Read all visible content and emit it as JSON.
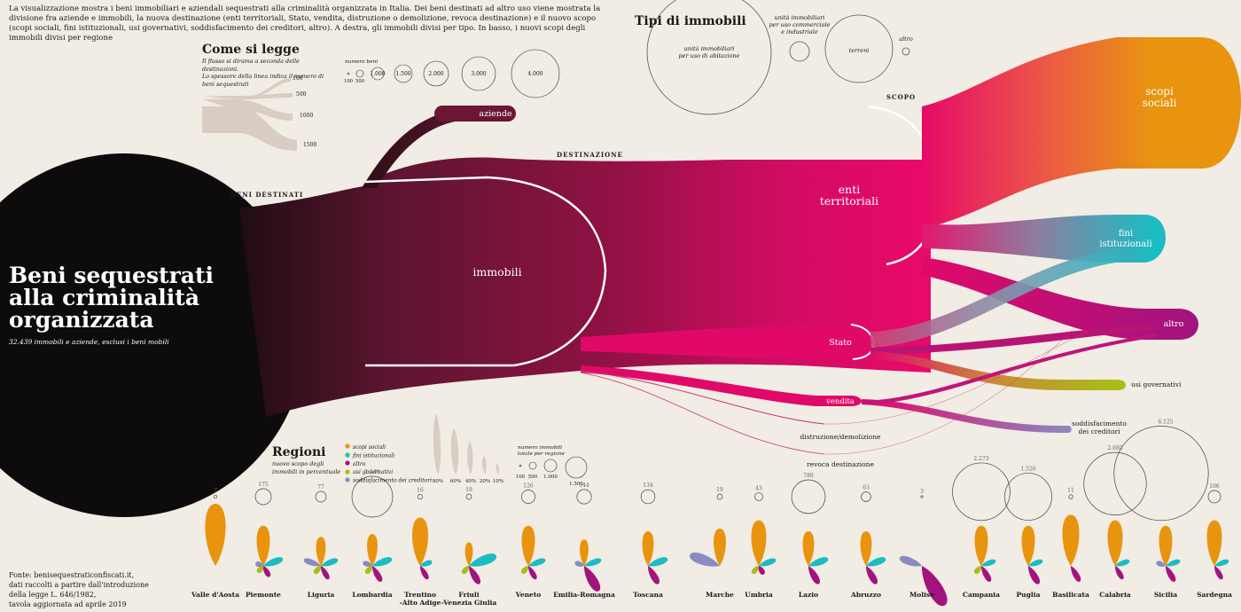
{
  "intro_text": "La visualizzazione mostra i beni immobiliari e aziendali sequestrati alla criminalità organizzata in Italia. Dei beni destinati ad altro uso viene mostrata la divisione fra aziende e immobili, la nuova destinazione (enti territoriali, Stato, vendita, distruzione o demolizione, revoca destinazione) e il nuovo scopo (scopi sociali, fini istituzionali, usi governativi, soddisfacimento dei creditori, altro). A destra, gli immobili divisi per tipo. In basso, i nuovi scopi degli immobili divisi per regione",
  "title": "Beni sequestrati alla criminalità organizzata",
  "title_lines": [
    "Beni sequestrati",
    "alla criminalità",
    "organizzata"
  ],
  "subtitle": "32.439 immobili e aziende, esclusi i beni mobili",
  "how_to_read": {
    "heading": "Come si legge",
    "line1": "Il flusso si dirama a seconda delle destinazioni.",
    "line2": "Lo spessore della linea indica il numero di beni sequestrati",
    "flow_values": [
      "100",
      "500",
      "1000",
      "1500"
    ],
    "legend_title": "numero beni",
    "circle_values": [
      "100",
      "500",
      "1.000",
      "1.500",
      "2.000",
      "3.000",
      "4.000"
    ]
  },
  "tipi": {
    "heading": "Tipi di immobili",
    "items": [
      "unità immobiliari per uso di abitazione",
      "unità immobiliari per uso commerciale e industriale",
      "terreni",
      "altro"
    ]
  },
  "stage_labels": {
    "beni": "BENI DESTINATI",
    "destinazione": "DESTINAZIONE",
    "scopo": "SCOPO"
  },
  "nodes": {
    "aziende": "aziende",
    "immobili": "immobili",
    "enti": "enti territoriali",
    "stato": "Stato",
    "vendita": "vendita",
    "distruzione": "distruzione/demolizione",
    "revoca": "revoca destinazione",
    "scopi_sociali": "scopi sociali",
    "fini": "fini istituzionali",
    "altro": "altro",
    "usi_gov": "usi governativi",
    "creditori": "soddisfacimento dei creditori"
  },
  "regioni": {
    "heading": "Regioni",
    "sub": "nuovo scopo degli immobili in percentuale",
    "legend": [
      "scopi sociali",
      "fini istituzionali",
      "altro",
      "usi governativi",
      "soddisfacimento dei creditori"
    ],
    "pct_labels": [
      "80%",
      "60%",
      "40%",
      "20%",
      "10%"
    ],
    "size_legend_title": "numero immobili totale per regione",
    "size_values": [
      "100",
      "500",
      "1.000",
      "1.500"
    ]
  },
  "colors": {
    "scopi_sociali": "#e8940f",
    "fini_istituzionali": "#1bbcc3",
    "altro": "#a3137e",
    "usi_governativi": "#a9bd17",
    "creditori": "#8c8ac2",
    "enti": "#e0096a",
    "immobili": "#6b1733",
    "background": "#f1ece4"
  },
  "source_lines": [
    "Fonte: benisequestraticonfiscati.it,",
    "dati raccolti a partire dall'introduzione",
    "della legge L. 646/1982,",
    "tavola aggiornata ad aprile 2019"
  ],
  "chart_data": {
    "type": "sankey",
    "total": 32439,
    "regions": [
      {
        "name": "Valle d'Aosta",
        "total": "7",
        "shares": {
          "scopi_sociali": 100
        }
      },
      {
        "name": "Piemonte",
        "total": "175",
        "shares": {
          "scopi_sociali": 60,
          "fini": 25,
          "altro": 10,
          "usi_gov": 3,
          "creditori": 2
        }
      },
      {
        "name": "Liguria",
        "total": "77",
        "shares": {
          "scopi_sociali": 40,
          "fini": 20,
          "altro": 15,
          "usi_gov": 5,
          "creditori": 20
        }
      },
      {
        "name": "Lombardia",
        "total": "1.141",
        "shares": {
          "scopi_sociali": 45,
          "fini": 25,
          "altro": 20,
          "usi_gov": 5,
          "creditori": 5
        }
      },
      {
        "name": "Trentino -Alto Adige",
        "total": "16",
        "shares": {
          "scopi_sociali": 75,
          "fini": 10,
          "altro": 15
        }
      },
      {
        "name": "Friuli -Venezia Giulia",
        "total": "19",
        "shares": {
          "scopi_sociali": 30,
          "fini": 40,
          "altro": 25,
          "usi_gov": 5
        }
      },
      {
        "name": "Veneto",
        "total": "126",
        "shares": {
          "scopi_sociali": 60,
          "fini": 20,
          "altro": 15,
          "usi_gov": 5
        }
      },
      {
        "name": "Emilia-Romagna",
        "total": "144",
        "shares": {
          "scopi_sociali": 35,
          "fini": 20,
          "altro": 40,
          "creditori": 5
        }
      },
      {
        "name": "Toscana",
        "total": "134",
        "shares": {
          "scopi_sociali": 50,
          "fini": 25,
          "altro": 25
        }
      },
      {
        "name": "Marche",
        "total": "19",
        "shares": {
          "scopi_sociali": 55,
          "creditori": 45
        }
      },
      {
        "name": "Umbria",
        "total": "43",
        "shares": {
          "scopi_sociali": 70,
          "fini": 20,
          "altro": 5,
          "usi_gov": 5
        }
      },
      {
        "name": "Lazio",
        "total": "780",
        "shares": {
          "scopi_sociali": 50,
          "fini": 25,
          "altro": 25
        }
      },
      {
        "name": "Abruzzo",
        "total": "63",
        "shares": {
          "scopi_sociali": 50,
          "fini": 25,
          "altro": 25
        }
      },
      {
        "name": "Molise",
        "total": "3",
        "shares": {
          "altro": 70,
          "creditori": 30
        }
      },
      {
        "name": "Campania",
        "total": "2.273",
        "shares": {
          "scopi_sociali": 60,
          "fini": 15,
          "altro": 20,
          "usi_gov": 5
        }
      },
      {
        "name": "Puglia",
        "total": "1.526",
        "shares": {
          "scopi_sociali": 60,
          "fini": 15,
          "altro": 25
        }
      },
      {
        "name": "Basilicata",
        "total": "11",
        "shares": {
          "scopi_sociali": 80,
          "altro": 20
        }
      },
      {
        "name": "Calabria",
        "total": "2.685",
        "shares": {
          "scopi_sociali": 70,
          "fini": 15,
          "altro": 15
        }
      },
      {
        "name": "Sicilia",
        "total": "6.125",
        "shares": {
          "scopi_sociali": 60,
          "fini": 15,
          "altro": 20,
          "creditori": 5
        }
      },
      {
        "name": "Sardegna",
        "total": "106",
        "shares": {
          "scopi_sociali": 70,
          "fini": 15,
          "altro": 15
        }
      }
    ]
  }
}
